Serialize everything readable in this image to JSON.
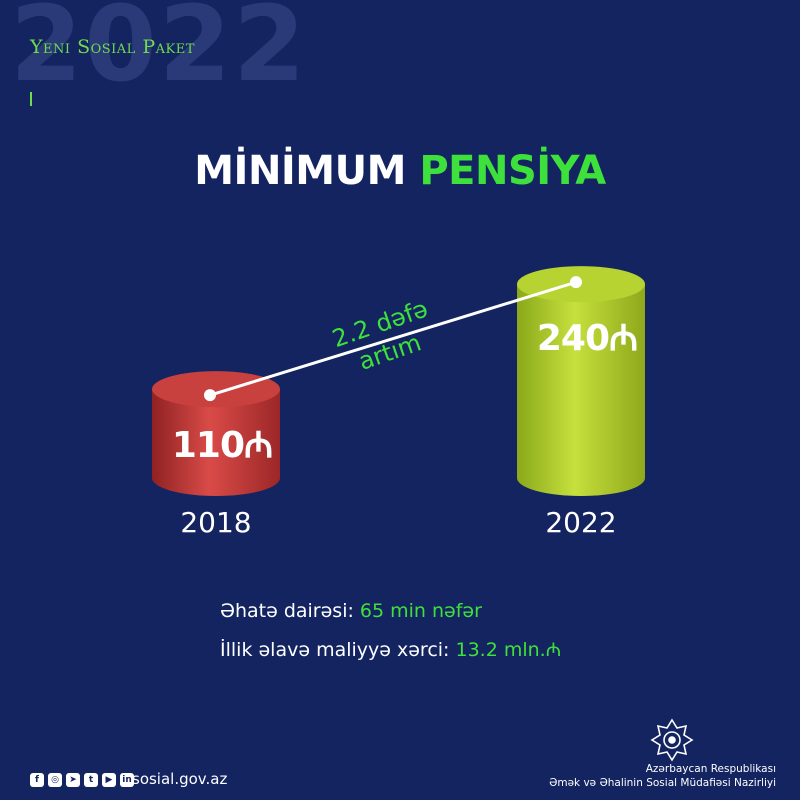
{
  "header": {
    "background_year": "2022",
    "brand": "Yeni Sosial Paket"
  },
  "title": {
    "part1": "MİNİMUM",
    "part2": "PENSİYA"
  },
  "chart_data": {
    "type": "bar",
    "categories": [
      "2018",
      "2022"
    ],
    "values": [
      110,
      240
    ],
    "value_labels": [
      "110₼",
      "240₼"
    ],
    "ylim": [
      0,
      260
    ],
    "bar_colors": [
      "#c8413f",
      "#b6d331"
    ],
    "annotation": {
      "line1": "2.2 dəfə",
      "line2": "artım"
    }
  },
  "info": {
    "line1_label": "Əhatə dairəsi: ",
    "line1_value": "65 min nəfər",
    "line2_label": "İllik əlavə maliyyə xərci: ",
    "line2_value": "13.2 mln.₼"
  },
  "footer": {
    "website": "sosial.gov.az",
    "social_icons": [
      "facebook-icon",
      "instagram-icon",
      "telegram-icon",
      "twitter-icon",
      "youtube-icon",
      "linkedin-icon"
    ],
    "org_line1": "Azərbaycan Respublikası",
    "org_line2": "Əmək və Əhalinin Sosial Müdafiəsi Nazirliyi"
  },
  "colors": {
    "background": "#132461",
    "accent_green": "#3ee03b",
    "white": "#ffffff"
  }
}
